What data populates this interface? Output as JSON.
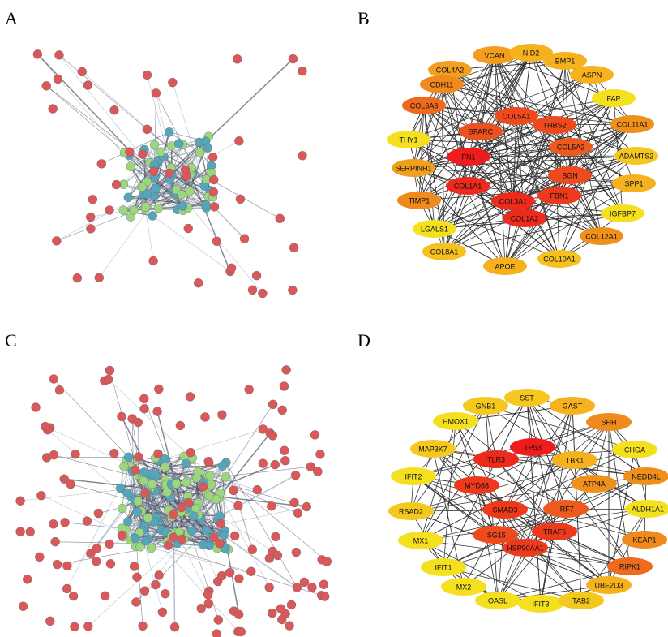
{
  "panels": [
    {
      "label": "A"
    },
    {
      "label": "B",
      "nodes": [
        {
          "label": "VCAN",
          "color": "#f39c1e"
        },
        {
          "label": "NID2",
          "color": "#f5b21e"
        },
        {
          "label": "COL4A2",
          "color": "#f3a020"
        },
        {
          "label": "BMP1",
          "color": "#f5b21e"
        },
        {
          "label": "ASPN",
          "color": "#f5b21e"
        },
        {
          "label": "CDH11",
          "color": "#f08a1c"
        },
        {
          "label": "FAP",
          "color": "#f5e020"
        },
        {
          "label": "COL6A3",
          "color": "#ee6a1c"
        },
        {
          "label": "COL5A1",
          "color": "#ee4a1e"
        },
        {
          "label": "THBS2",
          "color": "#ee4a1e"
        },
        {
          "label": "COL11A1",
          "color": "#f0901c"
        },
        {
          "label": "SPARC",
          "color": "#ee501e"
        },
        {
          "label": "THY1",
          "color": "#f5e020"
        },
        {
          "label": "COL5A2",
          "color": "#ee5a1e"
        },
        {
          "label": "ADAMTS2",
          "color": "#f5c820"
        },
        {
          "label": "FN1",
          "color": "#ee1c1c"
        },
        {
          "label": "SERPINH1",
          "color": "#f0a01c"
        },
        {
          "label": "BGN",
          "color": "#ee4a1e"
        },
        {
          "label": "COL1A1",
          "color": "#ee2a1c"
        },
        {
          "label": "SPP1",
          "color": "#f5b21e"
        },
        {
          "label": "FBN1",
          "color": "#ee3a1c"
        },
        {
          "label": "COL3A1",
          "color": "#ee2a1c"
        },
        {
          "label": "TIMP1",
          "color": "#f08a1c"
        },
        {
          "label": "IGFBP7",
          "color": "#f5e020"
        },
        {
          "label": "COL1A2",
          "color": "#ee2a1c"
        },
        {
          "label": "LGALS1",
          "color": "#f5e020"
        },
        {
          "label": "COL12A1",
          "color": "#f0901c"
        },
        {
          "label": "COL8A1",
          "color": "#f5c020"
        },
        {
          "label": "COL10A1",
          "color": "#f5c020"
        },
        {
          "label": "APOE",
          "color": "#f5b21e"
        }
      ]
    },
    {
      "label": "C"
    },
    {
      "label": "D",
      "nodes": [
        {
          "label": "SST",
          "color": "#f5c820"
        },
        {
          "label": "GNB1",
          "color": "#f5c820"
        },
        {
          "label": "GAST",
          "color": "#f5b21e"
        },
        {
          "label": "HMOX1",
          "color": "#f5e020"
        },
        {
          "label": "SHH",
          "color": "#f08a1c"
        },
        {
          "label": "TP53",
          "color": "#ee1c1c"
        },
        {
          "label": "CHGA",
          "color": "#f5e020"
        },
        {
          "label": "MAP3K7",
          "color": "#f5c820"
        },
        {
          "label": "TLR3",
          "color": "#ee2a1c"
        },
        {
          "label": "TBK1",
          "color": "#f5b21e"
        },
        {
          "label": "IFIT2",
          "color": "#f5e020"
        },
        {
          "label": "NEDD4L",
          "color": "#f0901c"
        },
        {
          "label": "MYD88",
          "color": "#ee3a1c"
        },
        {
          "label": "ATP4A",
          "color": "#f0901c"
        },
        {
          "label": "RSAD2",
          "color": "#f5c820"
        },
        {
          "label": "SMAD3",
          "color": "#ee3a1c"
        },
        {
          "label": "IRF7",
          "color": "#ee5a1e"
        },
        {
          "label": "ALDH1A1",
          "color": "#f5e020"
        },
        {
          "label": "MX1",
          "color": "#f5e020"
        },
        {
          "label": "ISG15",
          "color": "#ee4a1e"
        },
        {
          "label": "TRAF6",
          "color": "#ee3a1c"
        },
        {
          "label": "KEAP1",
          "color": "#f08a1c"
        },
        {
          "label": "HSP90AA1",
          "color": "#ee3a1c"
        },
        {
          "label": "IFIT1",
          "color": "#f5e020"
        },
        {
          "label": "RIPK1",
          "color": "#ee6a1c"
        },
        {
          "label": "MX2",
          "color": "#f5e020"
        },
        {
          "label": "OASL",
          "color": "#f5e020"
        },
        {
          "label": "IFIT3",
          "color": "#f5e020"
        },
        {
          "label": "TAB2",
          "color": "#f5c820"
        },
        {
          "label": "UBE2D3",
          "color": "#f5b21e"
        }
      ]
    }
  ]
}
